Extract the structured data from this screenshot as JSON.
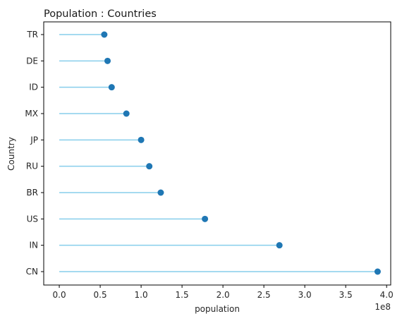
{
  "chart_data": {
    "type": "lollipop",
    "orientation": "horizontal",
    "title": "Population : Countries",
    "xlabel": "population",
    "ylabel": "Country",
    "x_offset_label": "1e8",
    "categories": [
      "CN",
      "IN",
      "US",
      "BR",
      "RU",
      "JP",
      "MX",
      "ID",
      "DE",
      "TR"
    ],
    "values": [
      389000000,
      269000000,
      178000000,
      124000000,
      110000000,
      100000000,
      82000000,
      64000000,
      59000000,
      55000000
    ],
    "xlim": [
      -0.19,
      4.05
    ],
    "x_ticks": [
      0.0,
      0.5,
      1.0,
      1.5,
      2.0,
      2.5,
      3.0,
      3.5,
      4.0
    ],
    "x_tick_labels": [
      "0.0",
      "0.5",
      "1.0",
      "1.5",
      "2.0",
      "2.5",
      "3.0",
      "3.5",
      "4.0"
    ],
    "scale": 100000000,
    "stem_color": "#87ceeb",
    "marker_color": "#1f77b4",
    "grid": false
  }
}
